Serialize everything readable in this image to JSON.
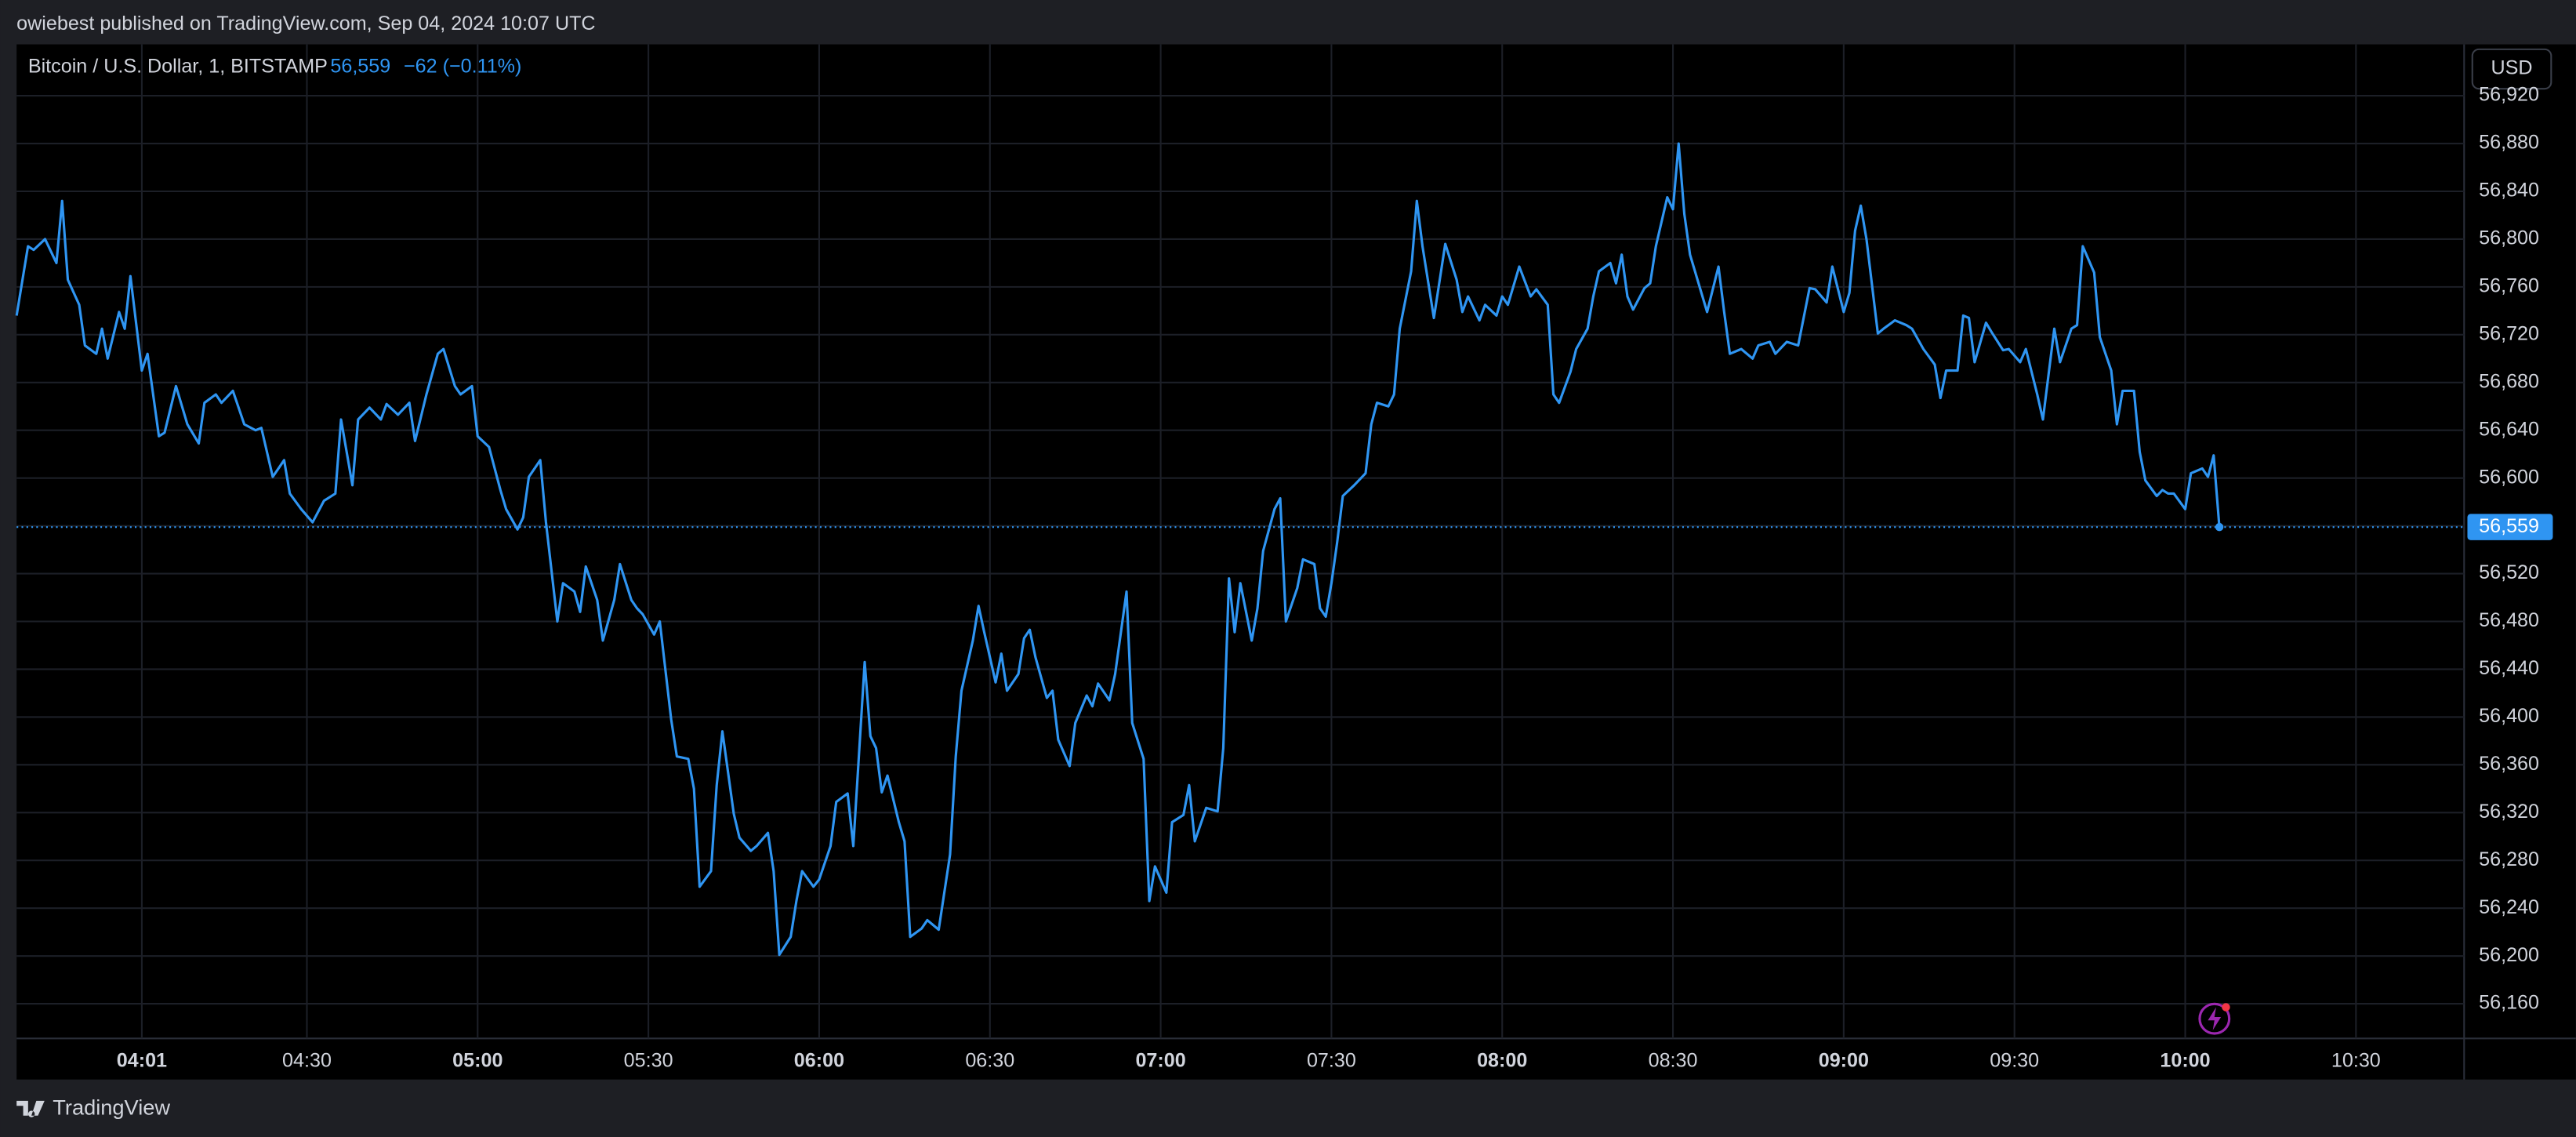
{
  "header": {
    "text": "owiebest published on TradingView.com, Sep 04, 2024 10:07 UTC"
  },
  "footer": {
    "brand": "TradingView"
  },
  "chart_data": {
    "type": "line",
    "currency": "USD",
    "change": "−62 (−0.11%)",
    "last_price": {
      "value": 56559,
      "label": "56,559"
    },
    "xlim": [
      "03:39",
      "10:49"
    ],
    "ylim": [
      56131,
      56963
    ],
    "grid": true,
    "xticks": [
      "04:01",
      "04:30",
      "05:00",
      "05:30",
      "06:00",
      "06:30",
      "07:00",
      "07:30",
      "08:00",
      "08:30",
      "09:00",
      "09:30",
      "10:00",
      "10:30"
    ],
    "yticks": [
      {
        "value": 56160,
        "label": "56,160"
      },
      {
        "value": 56200,
        "label": "56,200"
      },
      {
        "value": 56240,
        "label": "56,240"
      },
      {
        "value": 56280,
        "label": "56,280"
      },
      {
        "value": 56320,
        "label": "56,320"
      },
      {
        "value": 56360,
        "label": "56,360"
      },
      {
        "value": 56400,
        "label": "56,400"
      },
      {
        "value": 56440,
        "label": "56,440"
      },
      {
        "value": 56480,
        "label": "56,480"
      },
      {
        "value": 56520,
        "label": "56,520"
      },
      {
        "value": 56560,
        "label": "56,560"
      },
      {
        "value": 56600,
        "label": "56,600"
      },
      {
        "value": 56640,
        "label": "56,640"
      },
      {
        "value": 56680,
        "label": "56,680"
      },
      {
        "value": 56720,
        "label": "56,720"
      },
      {
        "value": 56760,
        "label": "56,760"
      },
      {
        "value": 56800,
        "label": "56,800"
      },
      {
        "value": 56840,
        "label": "56,840"
      },
      {
        "value": 56880,
        "label": "56,880"
      },
      {
        "value": 56920,
        "label": "56,920"
      }
    ],
    "x": [
      "03:39",
      "03:41",
      "03:42",
      "03:44",
      "03:46",
      "03:47",
      "03:48",
      "03:50",
      "03:51",
      "03:53",
      "03:54",
      "03:55",
      "03:57",
      "03:58",
      "03:59",
      "04:01",
      "04:02",
      "04:04",
      "04:05",
      "04:07",
      "04:09",
      "04:11",
      "04:12",
      "04:14",
      "04:15",
      "04:17",
      "04:19",
      "04:21",
      "04:22",
      "04:24",
      "04:26",
      "04:27",
      "04:29",
      "04:31",
      "04:33",
      "04:35",
      "04:36",
      "04:38",
      "04:39",
      "04:41",
      "04:43",
      "04:44",
      "04:46",
      "04:48",
      "04:49",
      "04:51",
      "04:53",
      "04:54",
      "04:56",
      "04:57",
      "04:59",
      "05:00",
      "05:02",
      "05:04",
      "05:05",
      "05:07",
      "05:08",
      "05:09",
      "05:11",
      "05:12",
      "05:14",
      "05:15",
      "05:17",
      "05:18",
      "05:19",
      "05:21",
      "05:22",
      "05:24",
      "05:25",
      "05:27",
      "05:28",
      "05:29",
      "05:31",
      "05:32",
      "05:34",
      "05:35",
      "05:37",
      "05:38",
      "05:39",
      "05:41",
      "05:42",
      "05:43",
      "05:45",
      "05:46",
      "05:48",
      "05:49",
      "05:51",
      "05:52",
      "05:53",
      "05:55",
      "05:56",
      "05:57",
      "05:59",
      "06:00",
      "06:02",
      "06:03",
      "06:05",
      "06:06",
      "06:08",
      "06:09",
      "06:10",
      "06:11",
      "06:12",
      "06:14",
      "06:15",
      "06:16",
      "06:18",
      "06:19",
      "06:21",
      "06:23",
      "06:24",
      "06:25",
      "06:27",
      "06:28",
      "06:29",
      "06:31",
      "06:32",
      "06:33",
      "06:35",
      "06:36",
      "06:37",
      "06:38",
      "06:40",
      "06:41",
      "06:42",
      "06:44",
      "06:45",
      "06:47",
      "06:48",
      "06:49",
      "06:51",
      "06:52",
      "06:54",
      "06:55",
      "06:57",
      "06:58",
      "06:59",
      "07:01",
      "07:02",
      "07:04",
      "07:05",
      "07:06",
      "07:08",
      "07:10",
      "07:11",
      "07:12",
      "07:13",
      "07:14",
      "07:16",
      "07:17",
      "07:18",
      "07:20",
      "07:21",
      "07:22",
      "07:24",
      "07:25",
      "07:27",
      "07:28",
      "07:29",
      "07:30",
      "07:31",
      "07:32",
      "07:34",
      "07:36",
      "07:37",
      "07:38",
      "07:40",
      "07:41",
      "07:42",
      "07:44",
      "07:45",
      "07:46",
      "07:48",
      "07:50",
      "07:52",
      "07:53",
      "07:54",
      "07:56",
      "07:57",
      "07:59",
      "08:00",
      "08:01",
      "08:03",
      "08:05",
      "08:06",
      "08:08",
      "08:09",
      "08:10",
      "08:12",
      "08:13",
      "08:15",
      "08:16",
      "08:17",
      "08:19",
      "08:20",
      "08:21",
      "08:22",
      "08:23",
      "08:25",
      "08:26",
      "08:27",
      "08:29",
      "08:30",
      "08:31",
      "08:32",
      "08:33",
      "08:35",
      "08:36",
      "08:38",
      "08:39",
      "08:40",
      "08:42",
      "08:44",
      "08:45",
      "08:47",
      "08:48",
      "08:50",
      "08:52",
      "08:54",
      "08:55",
      "08:57",
      "08:58",
      "09:00",
      "09:01",
      "09:02",
      "09:03",
      "09:04",
      "09:06",
      "09:07",
      "09:09",
      "09:11",
      "09:12",
      "09:14",
      "09:16",
      "09:17",
      "09:18",
      "09:20",
      "09:21",
      "09:22",
      "09:23",
      "09:25",
      "09:26",
      "09:28",
      "09:29",
      "09:31",
      "09:32",
      "09:34",
      "09:35",
      "09:37",
      "09:38",
      "09:40",
      "09:41",
      "09:42",
      "09:44",
      "09:45",
      "09:47",
      "09:48",
      "09:49",
      "09:51",
      "09:52",
      "09:53",
      "09:55",
      "09:56",
      "09:57",
      "09:58",
      "10:00",
      "10:01",
      "10:03",
      "10:04",
      "10:05",
      "10:06"
    ],
    "series": [
      {
        "name": "Bitcoin / U.S. Dollar, 1, BITSTAMP",
        "color": "#2f95f2",
        "values": [
          56736,
          56794,
          56791,
          56800,
          56780,
          56832,
          56766,
          56745,
          56711,
          56704,
          56725,
          56700,
          56739,
          56725,
          56769,
          56690,
          56704,
          56635,
          56638,
          56677,
          56645,
          56629,
          56663,
          56670,
          56663,
          56673,
          56645,
          56640,
          56642,
          56601,
          56615,
          56587,
          56574,
          56563,
          56581,
          56587,
          56649,
          56594,
          56649,
          56659,
          56649,
          56662,
          56653,
          56663,
          56631,
          56670,
          56704,
          56708,
          56677,
          56670,
          56677,
          56635,
          56626,
          56590,
          56574,
          56557,
          56567,
          56601,
          56615,
          56563,
          56480,
          56512,
          56505,
          56488,
          56526,
          56498,
          56464,
          56498,
          56528,
          56498,
          56491,
          56486,
          56469,
          56480,
          56398,
          56367,
          56365,
          56340,
          56258,
          56271,
          56343,
          56388,
          56319,
          56299,
          56288,
          56292,
          56303,
          56271,
          56201,
          56216,
          56246,
          56271,
          56258,
          56264,
          56292,
          56329,
          56336,
          56292,
          56446,
          56384,
          56374,
          56337,
          56351,
          56312,
          56296,
          56216,
          56223,
          56230,
          56222,
          56285,
          56367,
          56422,
          56464,
          56493,
          56471,
          56429,
          56453,
          56422,
          56436,
          56466,
          56473,
          56450,
          56416,
          56422,
          56381,
          56359,
          56395,
          56418,
          56409,
          56428,
          56414,
          56436,
          56505,
          56395,
          56365,
          56246,
          56275,
          56253,
          56312,
          56318,
          56343,
          56296,
          56324,
          56321,
          56374,
          56516,
          56471,
          56512,
          56464,
          56491,
          56539,
          56574,
          56583,
          56480,
          56508,
          56532,
          56528,
          56491,
          56484,
          56512,
          56546,
          56585,
          56594,
          56604,
          56645,
          56663,
          56660,
          56670,
          56725,
          56773,
          56832,
          56794,
          56734,
          56796,
          56766,
          56739,
          56752,
          56732,
          56745,
          56736,
          56752,
          56745,
          56777,
          56752,
          56758,
          56745,
          56670,
          56663,
          56689,
          56708,
          56725,
          56752,
          56773,
          56780,
          56763,
          56787,
          56752,
          56741,
          56759,
          56763,
          56794,
          56835,
          56825,
          56880,
          56821,
          56787,
          56755,
          56739,
          56777,
          56739,
          56704,
          56708,
          56700,
          56711,
          56714,
          56704,
          56714,
          56711,
          56759,
          56758,
          56747,
          56777,
          56739,
          56755,
          56807,
          56828,
          56800,
          56721,
          56725,
          56732,
          56728,
          56725,
          56708,
          56695,
          56667,
          56690,
          56690,
          56736,
          56734,
          56697,
          56730,
          56722,
          56707,
          56708,
          56697,
          56708,
          56670,
          56649,
          56725,
          56697,
          56725,
          56728,
          56794,
          56772,
          56718,
          56690,
          56645,
          56673,
          56673,
          56622,
          56598,
          56585,
          56590,
          56587,
          56587,
          56574,
          56604,
          56608,
          56601,
          56619,
          56559
        ]
      }
    ]
  }
}
